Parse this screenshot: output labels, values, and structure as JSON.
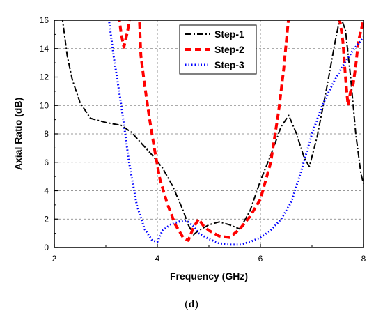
{
  "caption": {
    "open": "(",
    "letter": "d",
    "close": ")"
  },
  "chart_data": {
    "type": "line",
    "title": "",
    "xlabel": "Frequency (GHz)",
    "ylabel": "Axial Ratio (dB)",
    "xlim": [
      2,
      8
    ],
    "ylim": [
      0,
      16
    ],
    "xticks": [
      2,
      4,
      6,
      8
    ],
    "yticks": [
      0,
      2,
      4,
      6,
      8,
      10,
      12,
      14,
      16
    ],
    "grid": true,
    "legend_position": "top-right",
    "series": [
      {
        "name": "Step-1",
        "color": "#000000",
        "style": "dashdot",
        "x": [
          2.15,
          2.25,
          2.35,
          2.5,
          2.7,
          3.0,
          3.3,
          3.5,
          3.7,
          3.9,
          4.1,
          4.3,
          4.5,
          4.6,
          4.7,
          4.8,
          5.0,
          5.2,
          5.4,
          5.6,
          5.8,
          6.0,
          6.2,
          6.4,
          6.55,
          6.7,
          6.85,
          6.95,
          7.1,
          7.3,
          7.45,
          7.55,
          7.65,
          7.75,
          7.85,
          7.95,
          8.0
        ],
        "y": [
          16.3,
          13.5,
          11.8,
          10.2,
          9.1,
          8.8,
          8.6,
          8.1,
          7.3,
          6.5,
          5.6,
          4.3,
          2.6,
          1.6,
          0.9,
          1.2,
          1.6,
          1.8,
          1.6,
          1.3,
          2.6,
          4.7,
          6.5,
          8.5,
          9.3,
          8.0,
          6.3,
          5.7,
          7.8,
          11.5,
          14.5,
          16.3,
          15.3,
          12.0,
          8.0,
          5.2,
          4.5
        ]
      },
      {
        "name": "Step-2",
        "color": "#ff0000",
        "style": "dashed",
        "x": [
          3.25,
          3.3,
          3.35,
          3.42,
          3.47,
          3.58,
          3.65,
          3.68,
          3.75,
          3.85,
          3.95,
          4.05,
          4.2,
          4.35,
          4.5,
          4.6,
          4.7,
          4.8,
          4.9,
          5.0,
          5.2,
          5.4,
          5.6,
          5.8,
          6.0,
          6.2,
          6.35,
          6.45,
          6.55,
          7.5,
          7.55,
          7.6,
          7.65,
          7.7,
          7.75,
          7.8,
          7.85,
          7.9,
          8.0
        ],
        "y": [
          16.3,
          15.0,
          14.1,
          15.2,
          16.3,
          16.3,
          16.2,
          13.5,
          11.5,
          9.0,
          6.8,
          4.8,
          3.0,
          1.6,
          0.7,
          0.5,
          1.4,
          2.0,
          1.5,
          1.2,
          0.8,
          0.7,
          1.3,
          2.2,
          3.4,
          6.0,
          9.5,
          12.5,
          16.3,
          16.3,
          15.8,
          14.5,
          12.0,
          10.0,
          11.0,
          11.5,
          12.8,
          14.5,
          16.0
        ]
      },
      {
        "name": "Step-3",
        "color": "#0000ff",
        "style": "dotted",
        "x": [
          3.05,
          3.15,
          3.3,
          3.45,
          3.6,
          3.75,
          3.9,
          4.0,
          4.1,
          4.25,
          4.4,
          4.5,
          4.6,
          4.7,
          4.8,
          5.0,
          5.2,
          5.4,
          5.6,
          5.8,
          6.0,
          6.2,
          6.4,
          6.6,
          6.8,
          7.0,
          7.2,
          7.4,
          7.6,
          7.8,
          8.0
        ],
        "y": [
          16.3,
          13.5,
          10.0,
          6.0,
          3.0,
          1.3,
          0.5,
          0.4,
          1.2,
          1.6,
          1.8,
          1.9,
          1.8,
          1.5,
          1.0,
          0.6,
          0.3,
          0.2,
          0.2,
          0.4,
          0.7,
          1.2,
          2.0,
          3.2,
          5.5,
          8.0,
          10.0,
          11.5,
          12.8,
          13.9,
          14.8
        ]
      }
    ]
  }
}
